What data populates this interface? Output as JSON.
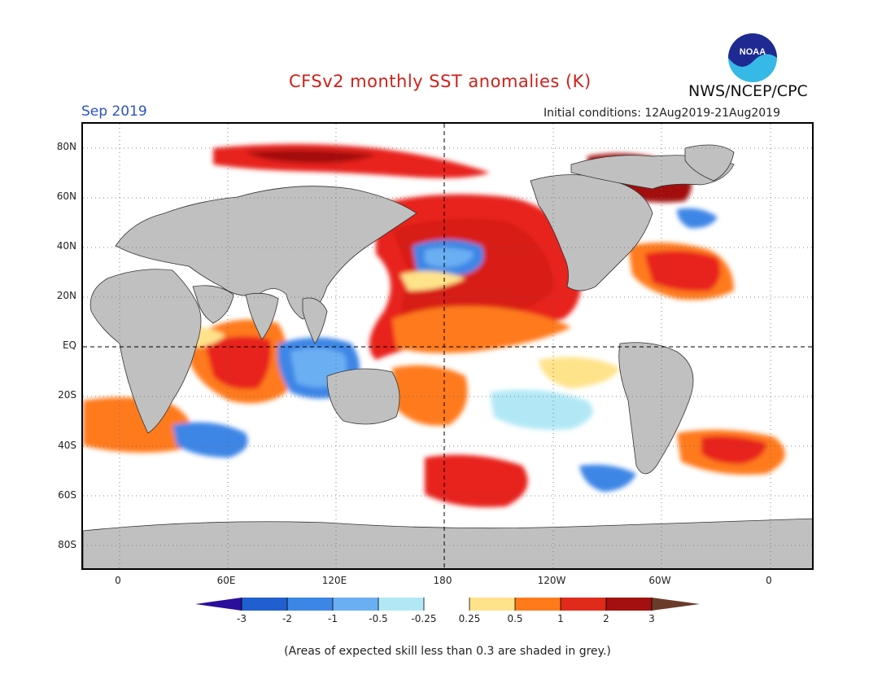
{
  "header": {
    "title": "CFSv2 monthly SST anomalies (K)",
    "agency": "NWS/NCEP/CPC",
    "logo_text": "NOAA",
    "month": "Sep 2019",
    "initial_conditions": "Initial conditions: 12Aug2019-21Aug2019"
  },
  "axes": {
    "lat_labels": [
      "80N",
      "60N",
      "40N",
      "20N",
      "EQ",
      "20S",
      "40S",
      "60S",
      "80S"
    ],
    "lon_labels": [
      "0",
      "60E",
      "120E",
      "180",
      "120W",
      "60W",
      "0"
    ]
  },
  "colorbar": {
    "tick_labels": [
      "-3",
      "-2",
      "-1",
      "-0.5",
      "-0.25",
      "0.25",
      "0.5",
      "1",
      "2",
      "3"
    ],
    "colors": [
      "#2a0f9c",
      "#1f5fcf",
      "#3c86e6",
      "#6aaff2",
      "#b2e8f5",
      "#ffffff",
      "#ffe38a",
      "#ff7a1a",
      "#e02a1a",
      "#a3100f",
      "#6b3b2a"
    ]
  },
  "colors": {
    "land": "#c0c0c0",
    "title": "#d0201a",
    "month": "#2b52c9"
  },
  "footnote": "(Areas of expected skill less than 0.3 are shaded in grey.)"
}
